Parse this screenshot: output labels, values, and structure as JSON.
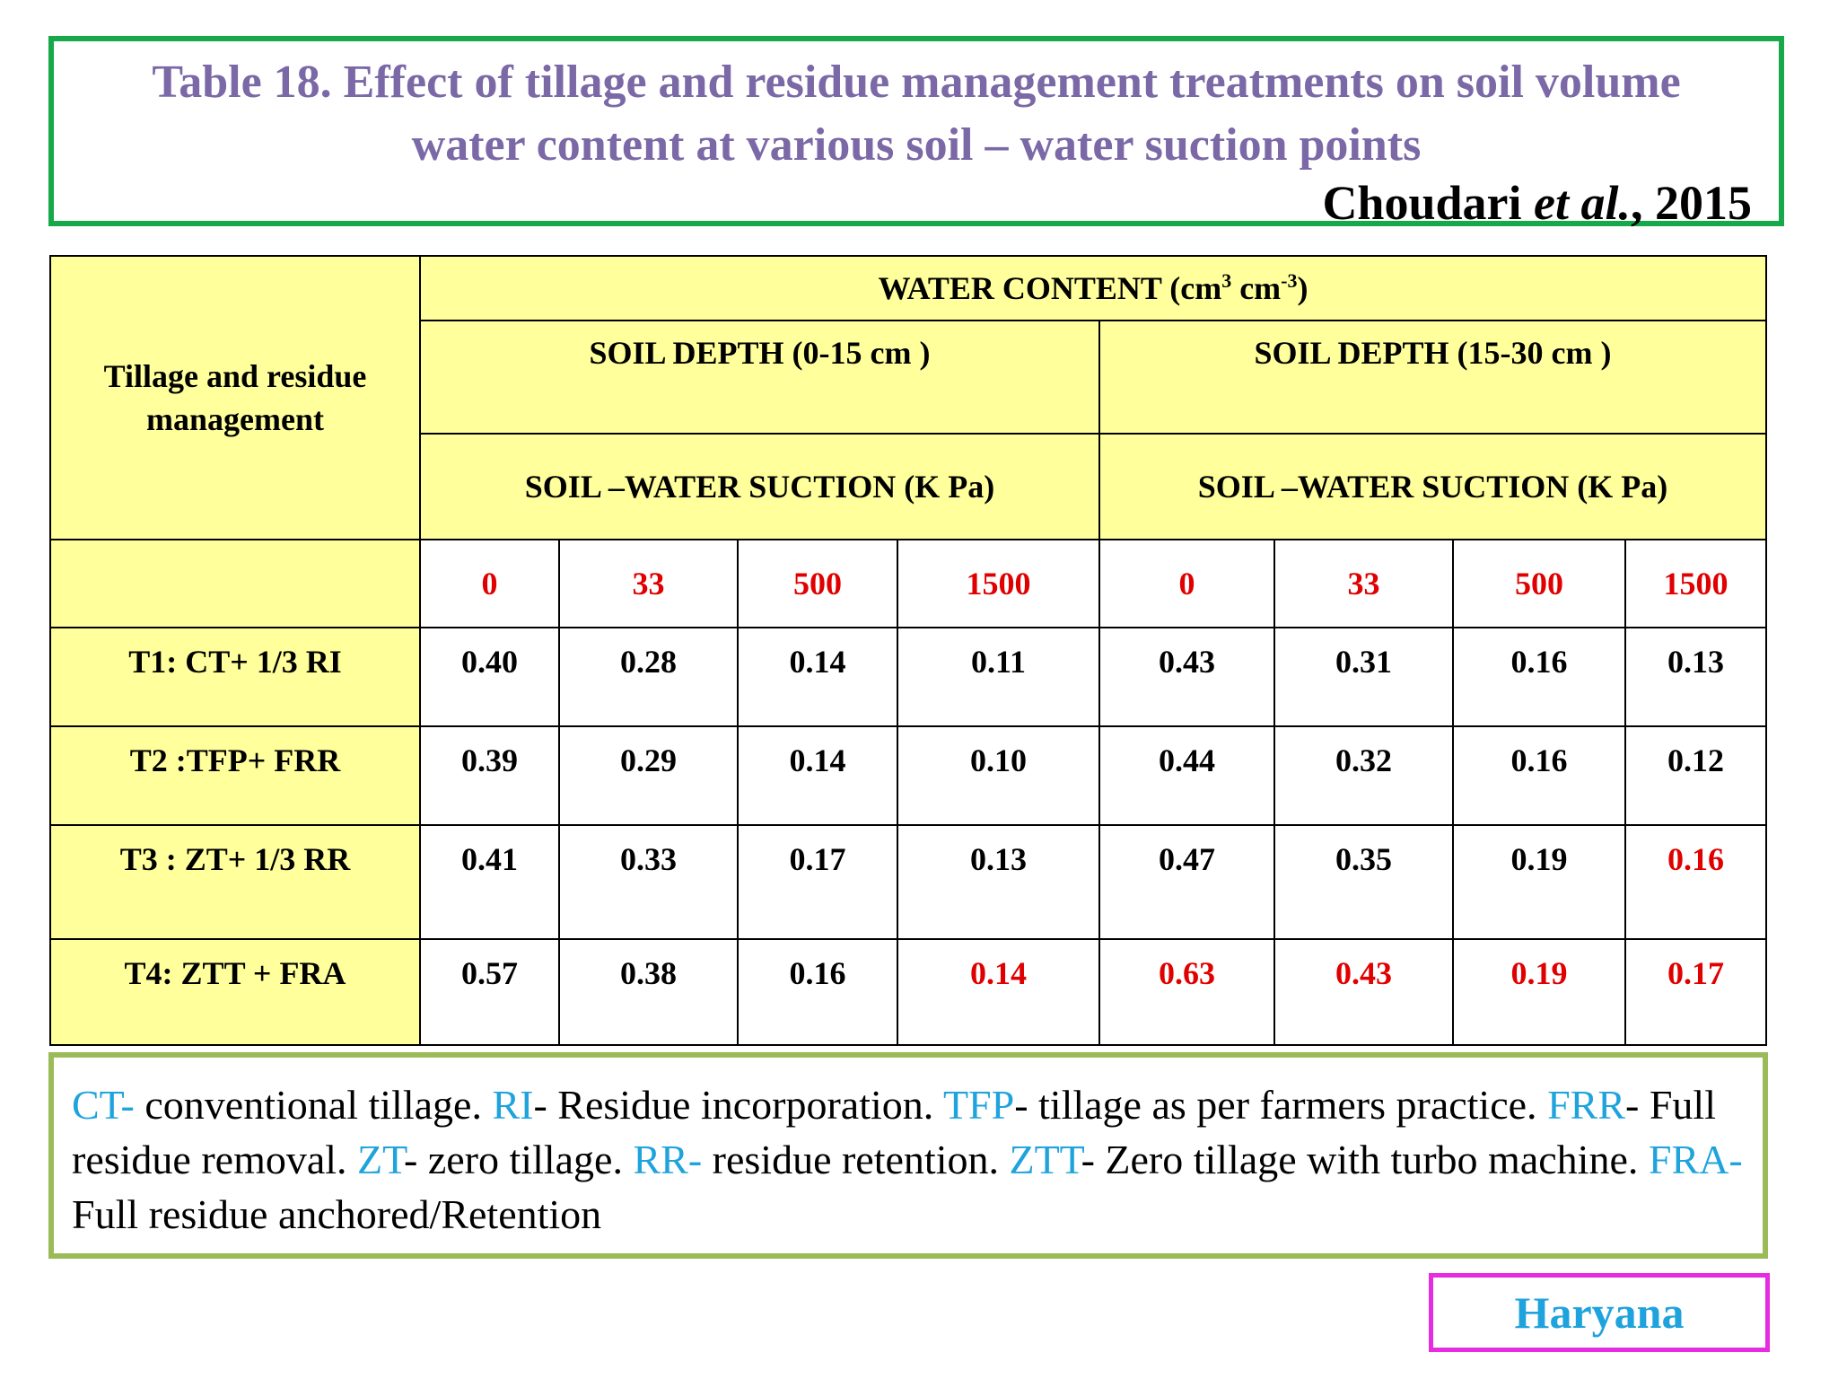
{
  "title": {
    "line1": "Table 18. Effect of tillage and residue  management treatments on soil volume",
    "line2": "water content at various  soil – water suction points",
    "citation_author": "Choudari",
    "citation_etal": "et al.",
    "citation_year": ", 2015"
  },
  "table": {
    "row_header": "Tillage and residue management",
    "water_content_label": "WATER CONTENT (cm",
    "water_content_sup1": "3",
    "water_content_mid": " cm",
    "water_content_sup2": "-3",
    "water_content_end": ")",
    "depth1": "SOIL DEPTH (0-15 cm )",
    "depth2": "SOIL DEPTH (15-30 cm )",
    "suction1": "SOIL –WATER SUCTION (K Pa)",
    "suction2": "SOIL –WATER SUCTION (K Pa)",
    "suction_points": [
      "0",
      "33",
      "500",
      "1500",
      "0",
      "33",
      "500",
      "1500"
    ],
    "rows": [
      {
        "label": "T1: CT+ 1/3 RI",
        "values": [
          "0.40",
          "0.28",
          "0.14",
          "0.11",
          "0.43",
          "0.31",
          "0.16",
          "0.13"
        ]
      },
      {
        "label": "T2 :TFP+ FRR",
        "values": [
          "0.39",
          "0.29",
          "0.14",
          "0.10",
          "0.44",
          "0.32",
          "0.16",
          "0.12"
        ]
      },
      {
        "label": "T3 : ZT+ 1/3 RR",
        "values": [
          "0.41",
          "0.33",
          "0.17",
          "0.13",
          "0.47",
          "0.35",
          "0.19",
          "0.16"
        ]
      },
      {
        "label": "T4: ZTT + FRA",
        "values": [
          "0.57",
          "0.38",
          "0.16",
          "0.14",
          "0.63",
          "0.43",
          "0.19",
          "0.17"
        ]
      }
    ],
    "highlight_color": "#e00000",
    "header_bg": "#ffff9c"
  },
  "abbreviations": [
    {
      "key": "CT-",
      "desc": " conventional tillage. "
    },
    {
      "key": "RI",
      "desc": "- Residue incorporation. "
    },
    {
      "key": "TFP",
      "desc": "- tillage as per farmers practice. "
    },
    {
      "key": "FRR",
      "desc": "- Full residue removal. "
    },
    {
      "key": "ZT",
      "desc": "- zero tillage. "
    },
    {
      "key": "RR-",
      "desc": " residue retention. "
    },
    {
      "key": "ZTT",
      "desc": "- Zero tillage with turbo machine. "
    },
    {
      "key": "FRA-",
      "desc": " Full residue anchored/Retention"
    }
  ],
  "region": "Haryana",
  "colors": {
    "title_text": "#7b68a6",
    "title_border": "#17a84a",
    "abbr_key": "#1fa3dd",
    "abbr_border": "#9bbb59",
    "region_border": "#e62be0",
    "region_text": "#1fa3dd"
  }
}
